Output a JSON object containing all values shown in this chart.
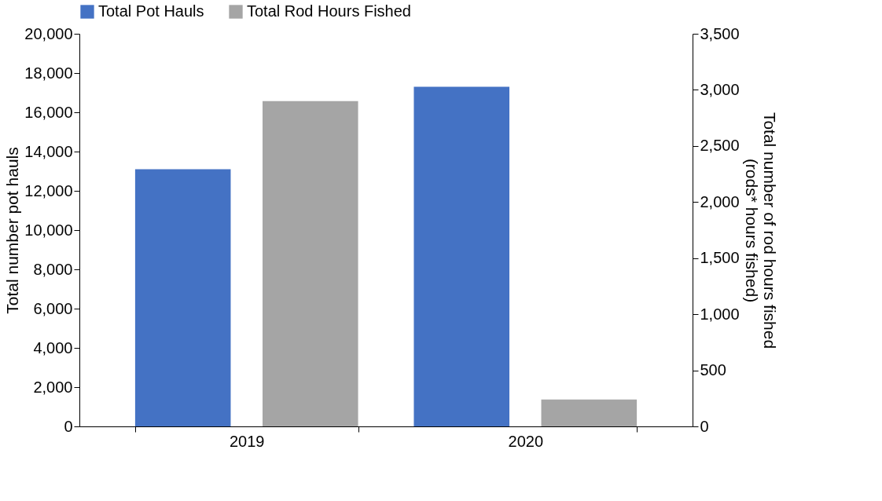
{
  "chart_data": {
    "type": "bar",
    "categories": [
      "2019",
      "2020"
    ],
    "series": [
      {
        "name": "Total Pot Hauls",
        "color": "#4472c4",
        "values": [
          13100,
          17300
        ]
      },
      {
        "name": "Total Rod Hours Fished",
        "color": "#a5a5a5",
        "values": [
          2900,
          240
        ],
        "axis": "y2"
      }
    ],
    "ylabel": "Total number pot hauls",
    "y2label": "Total number of rod hours fished\n(rods* hours fished)",
    "ylim": [
      0,
      20000
    ],
    "yticks": [
      0,
      {
        "value": 2000,
        "label": "2,000"
      },
      {
        "value": 4000,
        "label": "4,000"
      },
      {
        "value": 6000,
        "label": "6,000"
      },
      {
        "value": 8000,
        "label": "8,000"
      },
      {
        "value": 10000,
        "label": "10,000"
      },
      {
        "value": 12000,
        "label": "12,000"
      },
      {
        "value": 14000,
        "label": "14,000"
      },
      {
        "value": 16000,
        "label": "16,000"
      },
      {
        "value": 18000,
        "label": "18,000"
      },
      {
        "value": 20000,
        "label": "20,000"
      }
    ],
    "y2lim": [
      0,
      3500
    ],
    "y2ticks": [
      0,
      500,
      {
        "value": 1000,
        "label": "1,000"
      },
      {
        "value": 1500,
        "label": "1,500"
      },
      {
        "value": 2000,
        "label": "2,000"
      },
      {
        "value": 2500,
        "label": "2,500"
      },
      {
        "value": 3000,
        "label": "3,000"
      },
      {
        "value": 3500,
        "label": "3,500"
      }
    ],
    "grid": false,
    "legend": "top"
  }
}
